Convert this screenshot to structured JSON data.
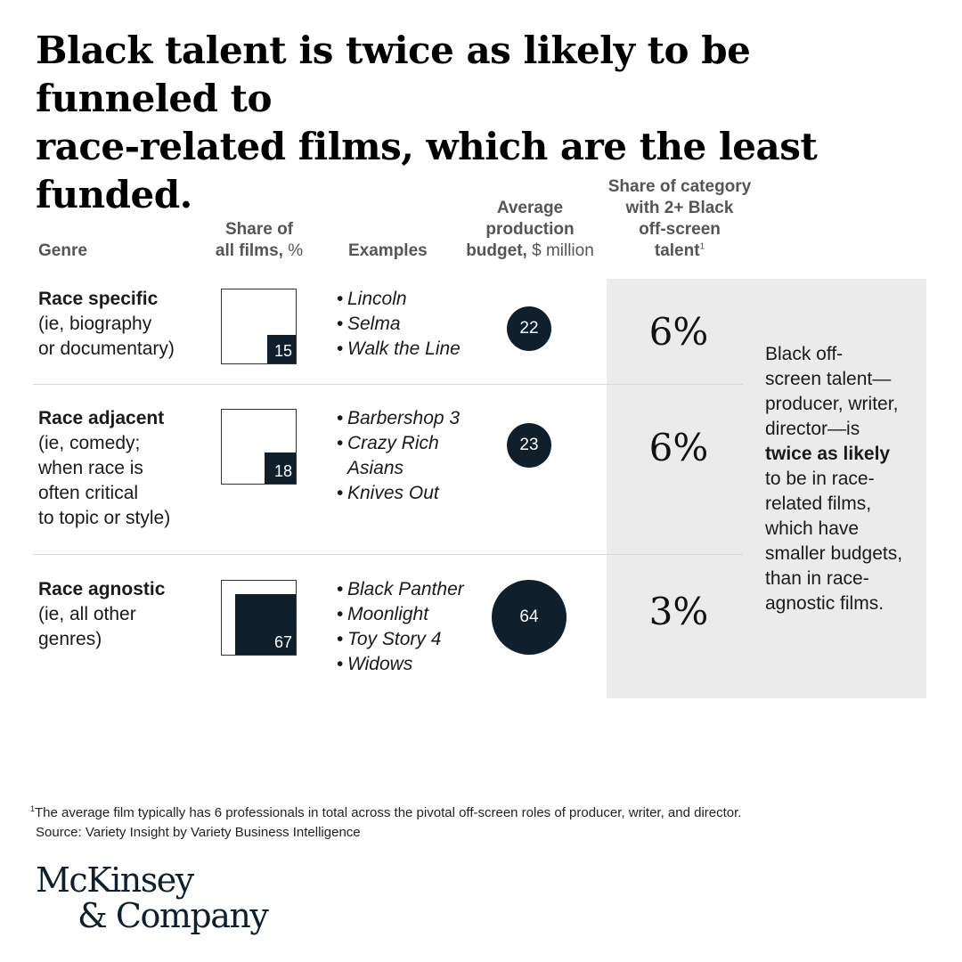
{
  "title": {
    "line1": "Black talent is twice as likely to be funneled to",
    "line2": "race-related films, which are the least funded."
  },
  "headers": {
    "genre": "Genre",
    "share_line1": "Share of",
    "share_line2_bold": "all films,",
    "share_unit": "%",
    "examples": "Examples",
    "budget_line1": "Average",
    "budget_line2": "production",
    "budget_line3_bold": "budget,",
    "budget_unit": "$ million",
    "talent_line1": "Share of category",
    "talent_line2": "with 2+ Black",
    "talent_line3": "off-screen",
    "talent_line4": "talent",
    "talent_footnote_mark": "1"
  },
  "chart_data": {
    "type": "table",
    "columns": [
      "Genre",
      "Share of all films, %",
      "Examples",
      "Average production budget, $ million",
      "Share of category with 2+ Black off-screen talent"
    ],
    "rows": [
      {
        "genre": "Race specific",
        "desc_lines": [
          "(ie, biography",
          "or documentary)"
        ],
        "share_pct": 15,
        "share_label": "15",
        "examples": [
          "Lincoln",
          "Selma",
          "Walk the Line"
        ],
        "budget_musd": 22,
        "budget_label": "22",
        "talent_share": "6%"
      },
      {
        "genre": "Race adjacent",
        "desc_lines": [
          "(ie, comedy;",
          "when race is",
          "often critical",
          "to topic or style)"
        ],
        "share_pct": 18,
        "share_label": "18",
        "examples": [
          "Barbershop 3",
          "Crazy Rich",
          "Asians",
          "Knives Out"
        ],
        "budget_musd": 23,
        "budget_label": "23",
        "talent_share": "6%"
      },
      {
        "genre": "Race agnostic",
        "desc_lines": [
          "(ie, all other",
          "genres)"
        ],
        "share_pct": 67,
        "share_label": "67",
        "examples": [
          "Black Panther",
          "Moonlight",
          "Toy Story 4",
          "Widows"
        ],
        "budget_musd": 64,
        "budget_label": "64",
        "talent_share": "3%"
      }
    ]
  },
  "callout": {
    "lines": [
      "Black off-",
      "screen talent—",
      "producer, writer,",
      "director—is"
    ],
    "bold": "twice as likely",
    "lines_after": [
      "to be in race-",
      "related films,",
      "which have",
      "smaller budgets,",
      "than in race-",
      "agnostic films."
    ]
  },
  "footnote": {
    "mark": "1",
    "text": "The average film typically has 6 professionals in total across the pivotal off-screen roles of producer, writer, and director."
  },
  "source": "Source: Variety Insight by Variety Business Intelligence",
  "logo": {
    "line1": "McKinsey",
    "line2": "& Company"
  },
  "colors": {
    "dark_navy": "#0f1f2c",
    "panel_gray": "#ebebeb"
  }
}
